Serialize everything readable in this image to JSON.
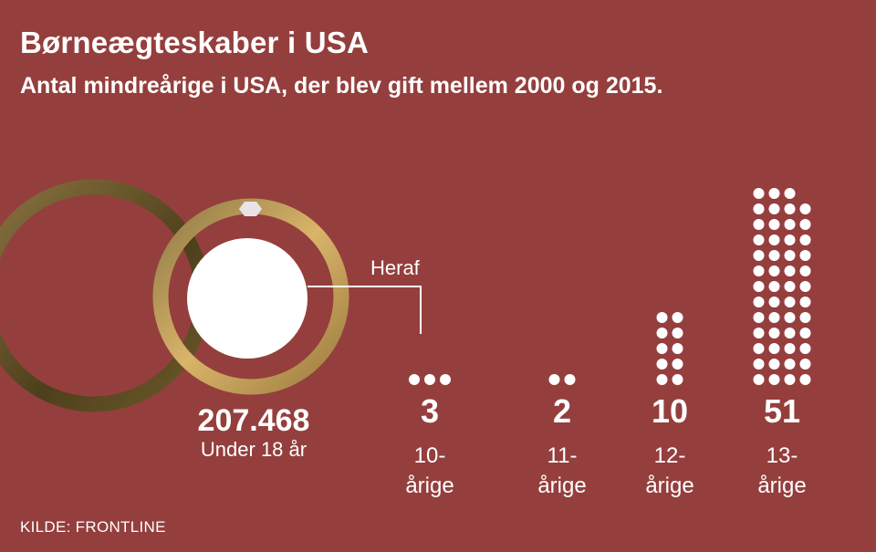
{
  "title": "Børneægteskaber i USA",
  "subtitle": "Antal mindreårige i USA, der blev gift mellem 2000 og 2015.",
  "source": "KILDE: FRONTLINE",
  "chart_data": {
    "type": "pictogram",
    "total": {
      "value": "207.468",
      "label": "Under 18 år"
    },
    "subset_label": "Heraf",
    "categories": [
      "10-årige",
      "11-årige",
      "12-årige",
      "13-årige"
    ],
    "category_lines": [
      [
        "10-",
        "årige"
      ],
      [
        "11-",
        "årige"
      ],
      [
        "12-",
        "årige"
      ],
      [
        "13-",
        "årige"
      ]
    ],
    "values": [
      3,
      2,
      10,
      51
    ],
    "dot_columns": [
      3,
      2,
      2,
      4
    ],
    "colors": {
      "background": "#943F3D",
      "dots": "#ffffff",
      "ring_gold": "#C9A25B",
      "ring_dark": "#6E5A2A"
    }
  }
}
